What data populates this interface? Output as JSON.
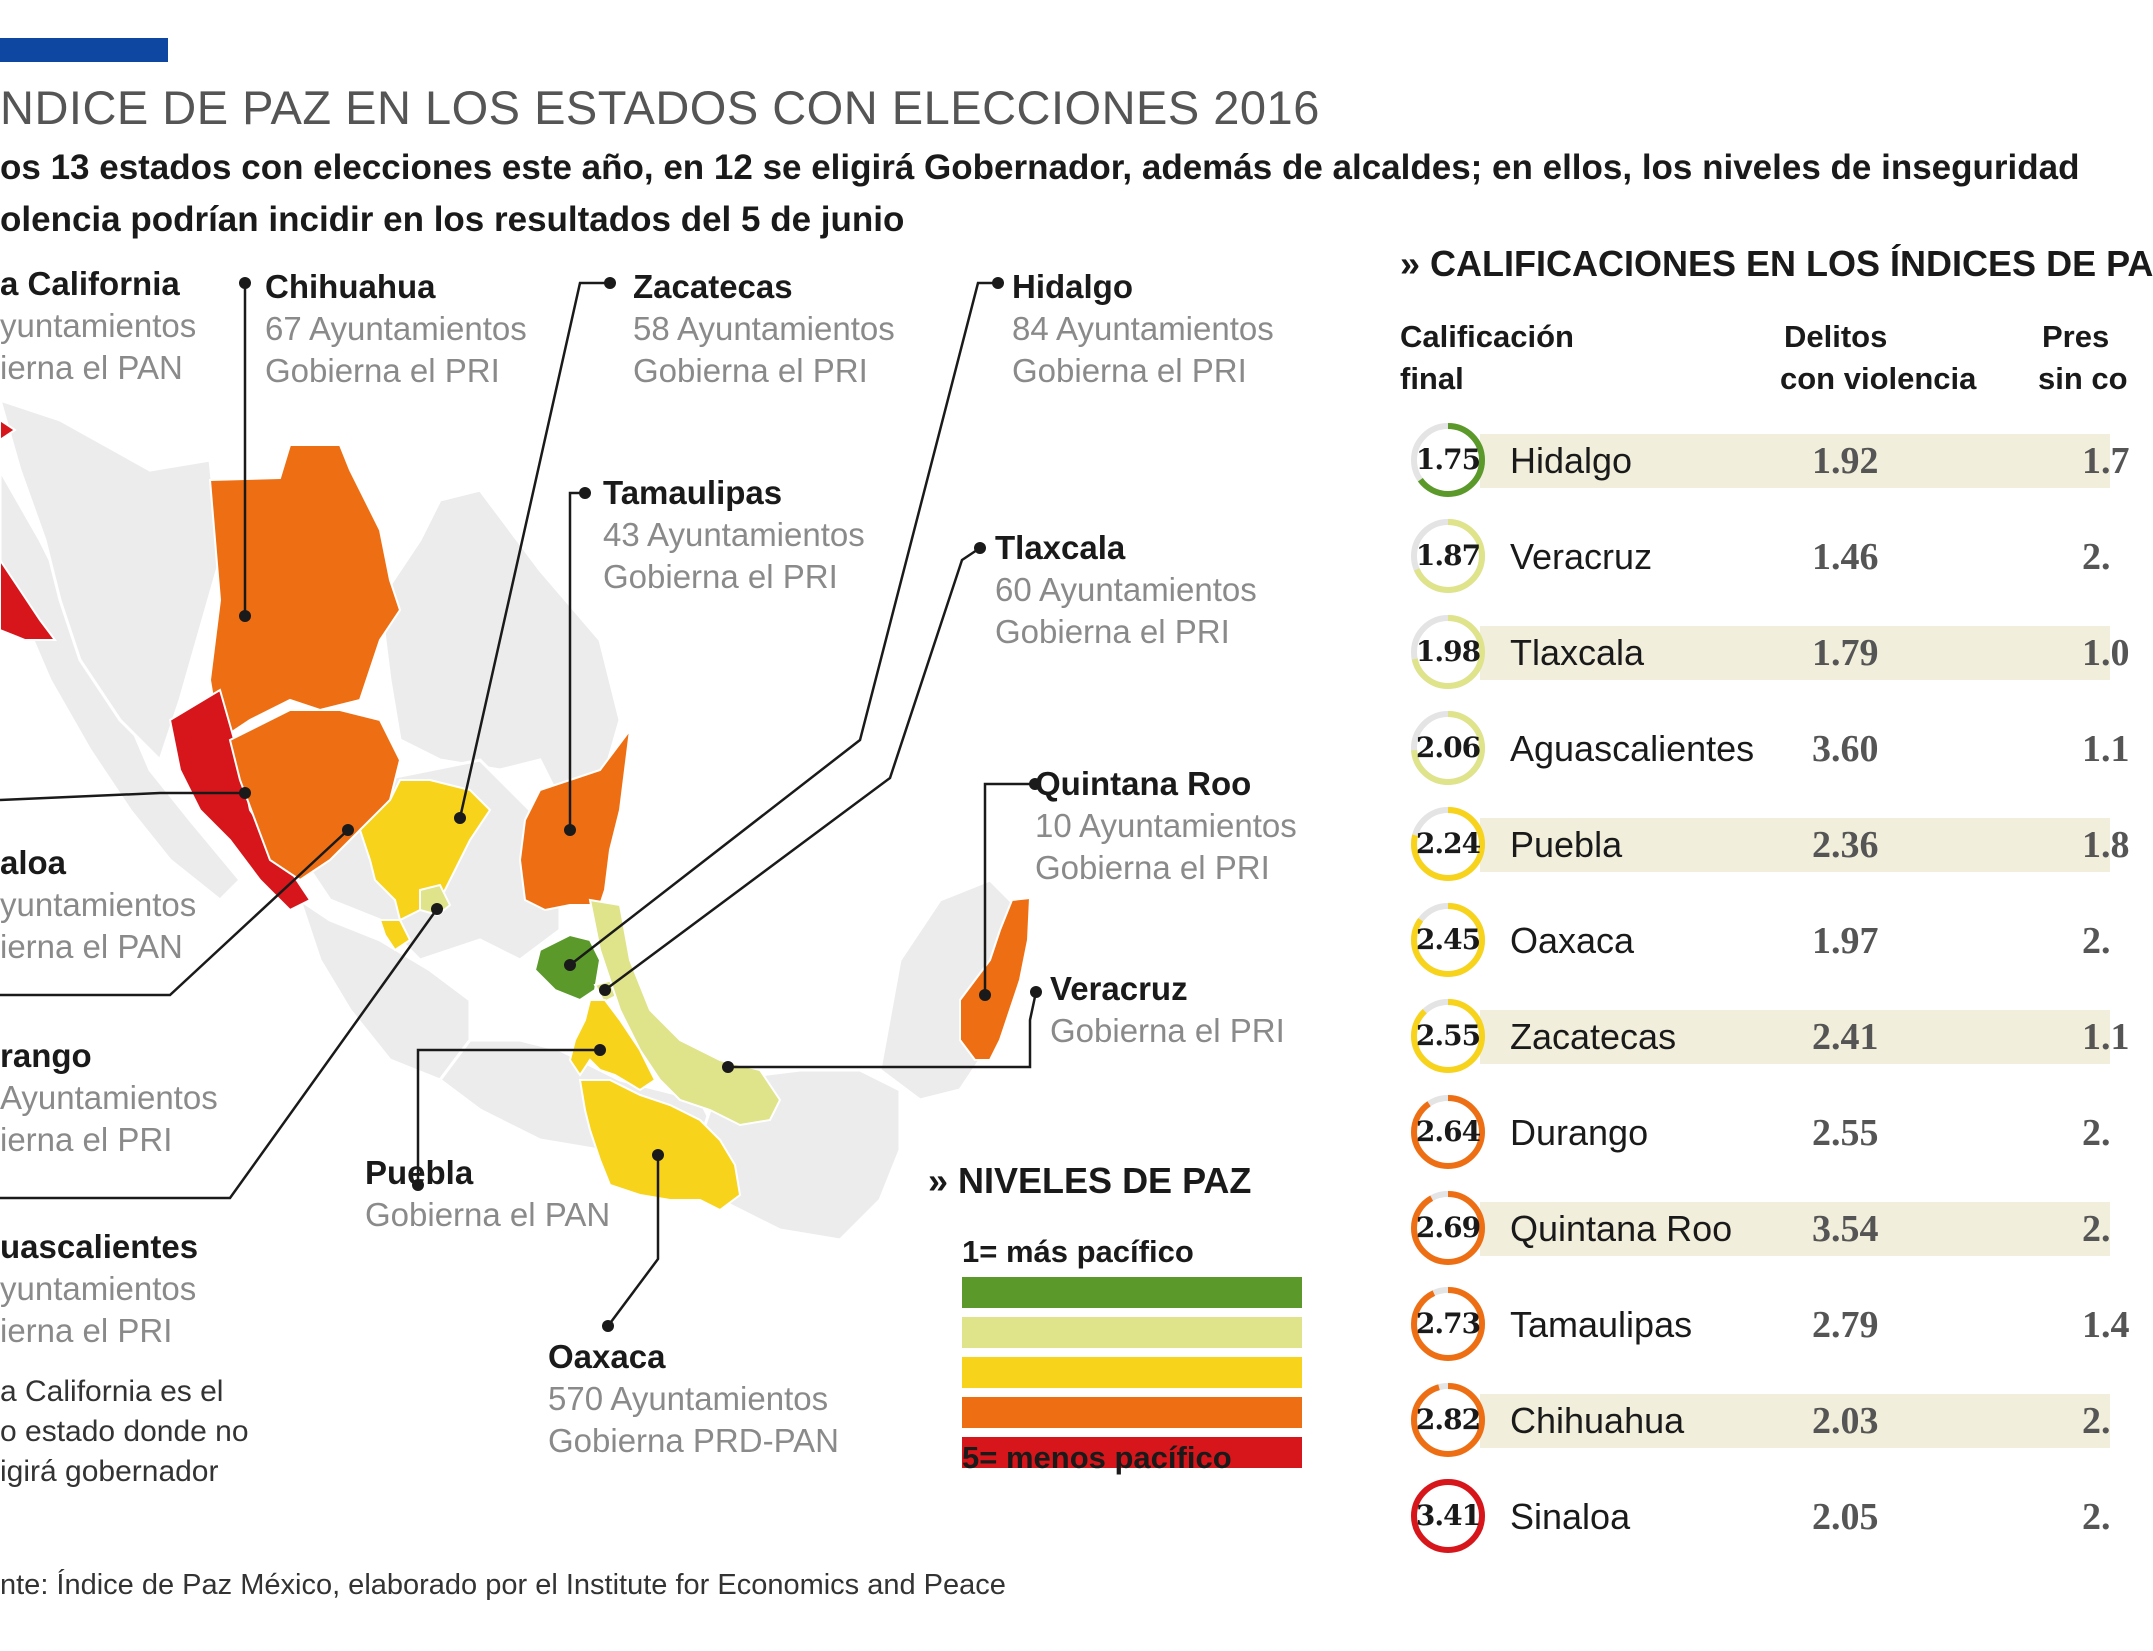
{
  "title": "NDICE DE PAZ EN LOS ESTADOS CON ELECCIONES 2016",
  "subtitle_line1": "os 13 estados con elecciones este año, en 12 se eligirá Gobernador, además de alcaldes; en ellos, los niveles de inseguridad",
  "subtitle_line2": "olencia podrían incidir en los resultados del 5 de junio",
  "map_labels": [
    {
      "name": "a California",
      "line1": "yuntamientos",
      "line2": "ierna el PAN"
    },
    {
      "name": "Chihuahua",
      "line1": "67 Ayuntamientos",
      "line2": "Gobierna el PRI"
    },
    {
      "name": "Zacatecas",
      "line1": "58 Ayuntamientos",
      "line2": "Gobierna el PRI"
    },
    {
      "name": "Hidalgo",
      "line1": "84 Ayuntamientos",
      "line2": "Gobierna el PRI"
    },
    {
      "name": "Tamaulipas",
      "line1": "43 Ayuntamientos",
      "line2": "Gobierna el PRI"
    },
    {
      "name": "Tlaxcala",
      "line1": "60 Ayuntamientos",
      "line2": "Gobierna el PRI"
    },
    {
      "name": "Quintana Roo",
      "line1": "10 Ayuntamientos",
      "line2": "Gobierna el PRI"
    },
    {
      "name": "Veracruz",
      "line1": "Gobierna el PRI",
      "line2": ""
    },
    {
      "name": "aloa",
      "line1": "yuntamientos",
      "line2": "ierna el PAN"
    },
    {
      "name": "rango",
      "line1": "Ayuntamientos",
      "line2": "ierna el PRI"
    },
    {
      "name": "Puebla",
      "line1": "Gobierna el PAN",
      "line2": ""
    },
    {
      "name": "uascalientes",
      "line1": "yuntamientos",
      "line2": "ierna el PRI"
    },
    {
      "name": "Oaxaca",
      "line1": "570 Ayuntamientos",
      "line2": "Gobierna PRD-PAN"
    }
  ],
  "note": [
    "a California es el",
    "o estado donde no",
    "igirá gobernador"
  ],
  "source": "nte: Índice de Paz México, elaborado por el Institute for Economics and Peace",
  "legend": {
    "title": "» NIVELES DE PAZ",
    "top_label": "1= más pacífico",
    "bottom_label": "5= menos pacífico",
    "colors": [
      "#5b9a2a",
      "#dfe38a",
      "#f7d31b",
      "#ee6f13",
      "#d7161b"
    ]
  },
  "table": {
    "title": "» CALIFICACIONES EN LOS ÍNDICES DE PA",
    "col1": [
      "Calificación",
      "final"
    ],
    "col2": [
      "Delitos",
      "con violencia"
    ],
    "col3": [
      "Pres",
      "sin co"
    ]
  },
  "chart_data": {
    "type": "table",
    "title": "CALIFICACIONES EN LOS ÍNDICES DE PA",
    "columns": [
      "Calificación final",
      "Delitos con violencia",
      "Pres sin co"
    ],
    "rows": [
      {
        "state": "Hidalgo",
        "score": "1.75",
        "score_value": 1.75,
        "delitos": "1.92",
        "col3": "1.7",
        "color": "#5b9a2a",
        "stripe": true
      },
      {
        "state": "Veracruz",
        "score": "1.87",
        "score_value": 1.87,
        "delitos": "1.46",
        "col3": "2.",
        "color": "#dfe38a",
        "stripe": false
      },
      {
        "state": "Tlaxcala",
        "score": "1.98",
        "score_value": 1.98,
        "delitos": "1.79",
        "col3": "1.0",
        "color": "#dfe38a",
        "stripe": true
      },
      {
        "state": "Aguascalientes",
        "score": "2.06",
        "score_value": 2.06,
        "delitos": "3.60",
        "col3": "1.1",
        "color": "#dfe38a",
        "stripe": false
      },
      {
        "state": "Puebla",
        "score": "2.24",
        "score_value": 2.24,
        "delitos": "2.36",
        "col3": "1.8",
        "color": "#f7d31b",
        "stripe": true
      },
      {
        "state": "Oaxaca",
        "score": "2.45",
        "score_value": 2.45,
        "delitos": "1.97",
        "col3": "2.",
        "color": "#f7d31b",
        "stripe": false
      },
      {
        "state": "Zacatecas",
        "score": "2.55",
        "score_value": 2.55,
        "delitos": "2.41",
        "col3": "1.1",
        "color": "#f7d31b",
        "stripe": true
      },
      {
        "state": "Durango",
        "score": "2.64",
        "score_value": 2.64,
        "delitos": "2.55",
        "col3": "2.",
        "color": "#ee6f13",
        "stripe": false
      },
      {
        "state": "Quintana Roo",
        "score": "2.69",
        "score_value": 2.69,
        "delitos": "3.54",
        "col3": "2.",
        "color": "#ee6f13",
        "stripe": true
      },
      {
        "state": "Tamaulipas",
        "score": "2.73",
        "score_value": 2.73,
        "delitos": "2.79",
        "col3": "1.4",
        "color": "#ee6f13",
        "stripe": false
      },
      {
        "state": "Chihuahua",
        "score": "2.82",
        "score_value": 2.82,
        "delitos": "2.03",
        "col3": "2.",
        "color": "#ee6f13",
        "stripe": true
      },
      {
        "state": "Sinaloa",
        "score": "3.41",
        "score_value": 3.41,
        "delitos": "2.05",
        "col3": "2.",
        "color": "#d7161b",
        "stripe": false
      }
    ]
  }
}
